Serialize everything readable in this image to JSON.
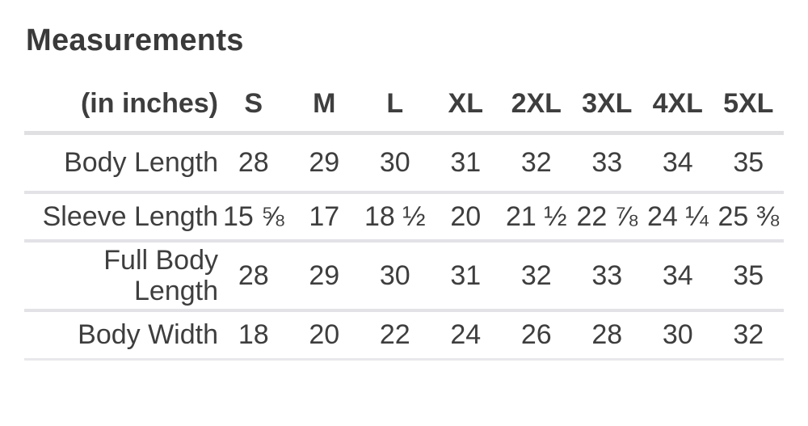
{
  "page": {
    "title": "Measurements"
  },
  "table": {
    "header": {
      "label_column": "(in inches)",
      "sizes": [
        "S",
        "M",
        "L",
        "XL",
        "2XL",
        "3XL",
        "4XL",
        "5XL"
      ]
    },
    "rows": [
      {
        "label": "Body Length",
        "values": [
          "28",
          "29",
          "30",
          "31",
          "32",
          "33",
          "34",
          "35"
        ]
      },
      {
        "label": "Sleeve Length",
        "values": [
          "15 ⅝",
          "17",
          "18 ½",
          "20",
          "21 ½",
          "22 ⅞",
          "24 ¼",
          "25 ⅜"
        ]
      },
      {
        "label": "Full Body Length",
        "values": [
          "28",
          "29",
          "30",
          "31",
          "32",
          "33",
          "34",
          "35"
        ]
      },
      {
        "label": "Body Width",
        "values": [
          "18",
          "20",
          "22",
          "24",
          "26",
          "28",
          "30",
          "32"
        ]
      }
    ]
  },
  "colors": {
    "text": "#3e3e3e",
    "title": "#3a3a3a",
    "separator_header": "#e0e0e3",
    "separator_row": "#e2e2e7",
    "separator_bottom": "#e9e9ec",
    "background": "#ffffff"
  }
}
